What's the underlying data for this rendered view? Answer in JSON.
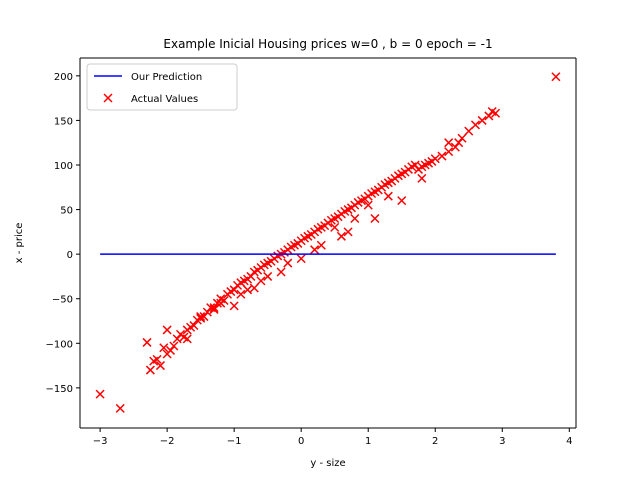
{
  "chart_data": {
    "type": "scatter",
    "title": "Example Inicial Housing prices w=0 , b = 0 epoch = -1",
    "xlabel": "y - size",
    "ylabel": "x - price",
    "xlim": [
      -3.3,
      4.1
    ],
    "ylim": [
      -195,
      220
    ],
    "xticks": [
      -3,
      -2,
      -1,
      0,
      1,
      2,
      3,
      4
    ],
    "yticks": [
      -150,
      -100,
      -50,
      0,
      50,
      100,
      150,
      200
    ],
    "xtick_labels": [
      "−3",
      "−2",
      "−1",
      "0",
      "1",
      "2",
      "3",
      "4"
    ],
    "ytick_labels": [
      "−150",
      "−100",
      "−50",
      "0",
      "50",
      "100",
      "150",
      "200"
    ],
    "grid": false,
    "legend_position": "top-left",
    "series": [
      {
        "name": "Our Prediction",
        "kind": "line",
        "color": "#0000ff",
        "x": [
          -3.0,
          3.8
        ],
        "y": [
          0,
          0
        ]
      },
      {
        "name": "Actual Values",
        "kind": "scatter",
        "marker": "x",
        "color": "#ff0000",
        "x": [
          -3.0,
          -2.7,
          -2.3,
          -2.25,
          -2.2,
          -2.15,
          -2.1,
          -2.05,
          -2.0,
          -1.95,
          -1.9,
          -1.85,
          -1.8,
          -1.75,
          -1.7,
          -1.65,
          -1.6,
          -1.55,
          -1.5,
          -1.45,
          -1.4,
          -1.35,
          -1.3,
          -1.25,
          -1.2,
          -1.15,
          -1.1,
          -1.05,
          -1.0,
          -0.95,
          -0.9,
          -0.85,
          -0.8,
          -0.75,
          -0.7,
          -0.65,
          -0.6,
          -0.55,
          -0.5,
          -0.45,
          -0.4,
          -0.35,
          -0.3,
          -0.25,
          -0.2,
          -0.15,
          -0.1,
          -0.05,
          0.0,
          0.05,
          0.1,
          0.15,
          0.2,
          0.25,
          0.3,
          0.35,
          0.4,
          0.45,
          0.5,
          0.55,
          0.6,
          0.65,
          0.7,
          0.75,
          0.8,
          0.85,
          0.9,
          0.95,
          1.0,
          1.05,
          1.1,
          1.15,
          1.2,
          1.25,
          1.3,
          1.35,
          1.4,
          1.45,
          1.5,
          1.55,
          1.6,
          1.65,
          1.7,
          1.75,
          1.8,
          1.85,
          1.9,
          1.95,
          2.0,
          2.1,
          2.2,
          2.3,
          2.35,
          2.4,
          2.5,
          2.6,
          2.7,
          2.8,
          2.85,
          2.9,
          3.8,
          -2.0,
          -1.7,
          -1.3,
          -0.9,
          -0.6,
          -0.2,
          0.3,
          0.7,
          1.1,
          1.5,
          -1.5,
          -1.0,
          -0.5,
          0.0,
          0.5,
          1.0,
          0.2,
          -0.3,
          -0.8,
          0.8,
          1.3,
          1.8,
          -1.2,
          -0.7,
          0.6,
          2.2
        ],
        "y": [
          -157,
          -173,
          -99,
          -130,
          -120,
          -118,
          -125,
          -105,
          -112,
          -108,
          -103,
          -95,
          -90,
          -93,
          -85,
          -82,
          -80,
          -74,
          -72,
          -70,
          -65,
          -60,
          -62,
          -55,
          -50,
          -52,
          -45,
          -42,
          -40,
          -35,
          -32,
          -30,
          -28,
          -25,
          -20,
          -18,
          -15,
          -12,
          -10,
          -8,
          -5,
          -2,
          0,
          2,
          5,
          8,
          10,
          12,
          15,
          18,
          20,
          22,
          25,
          28,
          30,
          32,
          35,
          38,
          40,
          42,
          45,
          48,
          50,
          52,
          55,
          58,
          60,
          62,
          65,
          68,
          70,
          72,
          75,
          78,
          80,
          82,
          85,
          88,
          90,
          92,
          95,
          98,
          100,
          95,
          98,
          100,
          102,
          104,
          107,
          110,
          115,
          120,
          125,
          130,
          138,
          145,
          150,
          155,
          160,
          158,
          199,
          -85,
          -95,
          -60,
          -45,
          -30,
          -10,
          10,
          25,
          40,
          60,
          -70,
          -58,
          -25,
          -5,
          30,
          55,
          5,
          -20,
          -40,
          40,
          65,
          85,
          -55,
          -38,
          20,
          125
        ]
      }
    ]
  }
}
